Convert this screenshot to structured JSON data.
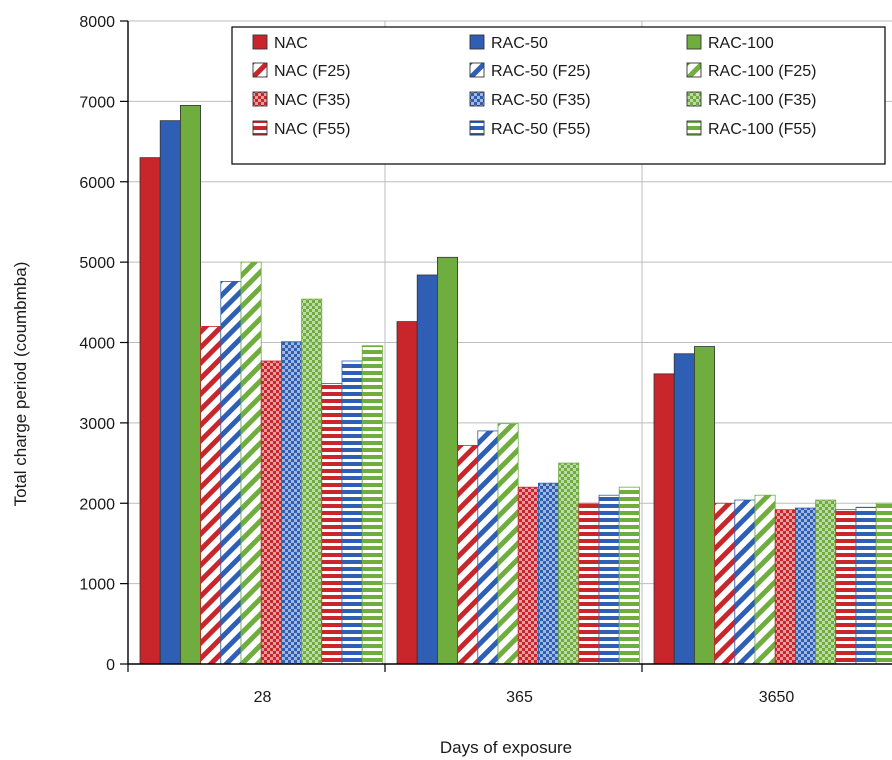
{
  "chart_data": {
    "type": "bar",
    "xlabel": "Days of exposure",
    "ylabel": "Total charge period (coumbmba)",
    "ylim": [
      0,
      8000
    ],
    "yticks": [
      0,
      1000,
      2000,
      3000,
      4000,
      5000,
      6000,
      7000,
      8000
    ],
    "grid": true,
    "legend_position": "top-right",
    "categories": [
      "28",
      "365",
      "3650"
    ],
    "series": [
      {
        "name": "NAC",
        "color": "#c8262b",
        "pattern": "solid",
        "values": [
          6300,
          4260,
          3610
        ]
      },
      {
        "name": "RAC-50",
        "color": "#2e5fb5",
        "pattern": "solid",
        "values": [
          6760,
          4840,
          3860
        ]
      },
      {
        "name": "RAC-100",
        "color": "#6fad3f",
        "pattern": "solid",
        "values": [
          6950,
          5060,
          3950
        ]
      },
      {
        "name": "NAC (F25)",
        "color": "#c8262b",
        "pattern": "diagonal",
        "values": [
          4200,
          2720,
          2000
        ]
      },
      {
        "name": "RAC-50 (F25)",
        "color": "#2e5fb5",
        "pattern": "diagonal",
        "values": [
          4760,
          2900,
          2040
        ]
      },
      {
        "name": "RAC-100 (F25)",
        "color": "#6fad3f",
        "pattern": "diagonal",
        "values": [
          5000,
          2990,
          2100
        ]
      },
      {
        "name": "NAC (F35)",
        "color": "#c8262b",
        "pattern": "checker",
        "values": [
          3770,
          2200,
          1920
        ]
      },
      {
        "name": "RAC-50 (F35)",
        "color": "#2e5fb5",
        "pattern": "checker",
        "values": [
          4010,
          2250,
          1940
        ]
      },
      {
        "name": "RAC-100 (F35)",
        "color": "#6fad3f",
        "pattern": "checker",
        "values": [
          4540,
          2500,
          2040
        ]
      },
      {
        "name": "NAC (F55)",
        "color": "#c8262b",
        "pattern": "horizontal",
        "values": [
          3490,
          2000,
          1920
        ]
      },
      {
        "name": "RAC-50 (F55)",
        "color": "#2e5fb5",
        "pattern": "horizontal",
        "values": [
          3770,
          2100,
          1950
        ]
      },
      {
        "name": "RAC-100 (F55)",
        "color": "#6fad3f",
        "pattern": "horizontal",
        "values": [
          3960,
          2200,
          2000
        ]
      }
    ],
    "legend_order": [
      "NAC",
      "RAC-50",
      "RAC-100",
      "NAC (F25)",
      "RAC-50 (F25)",
      "RAC-100 (F25)",
      "NAC (F35)",
      "RAC-50 (F35)",
      "RAC-100 (F35)",
      "NAC (F55)",
      "RAC-50 (F55)",
      "RAC-100 (F55)"
    ]
  }
}
